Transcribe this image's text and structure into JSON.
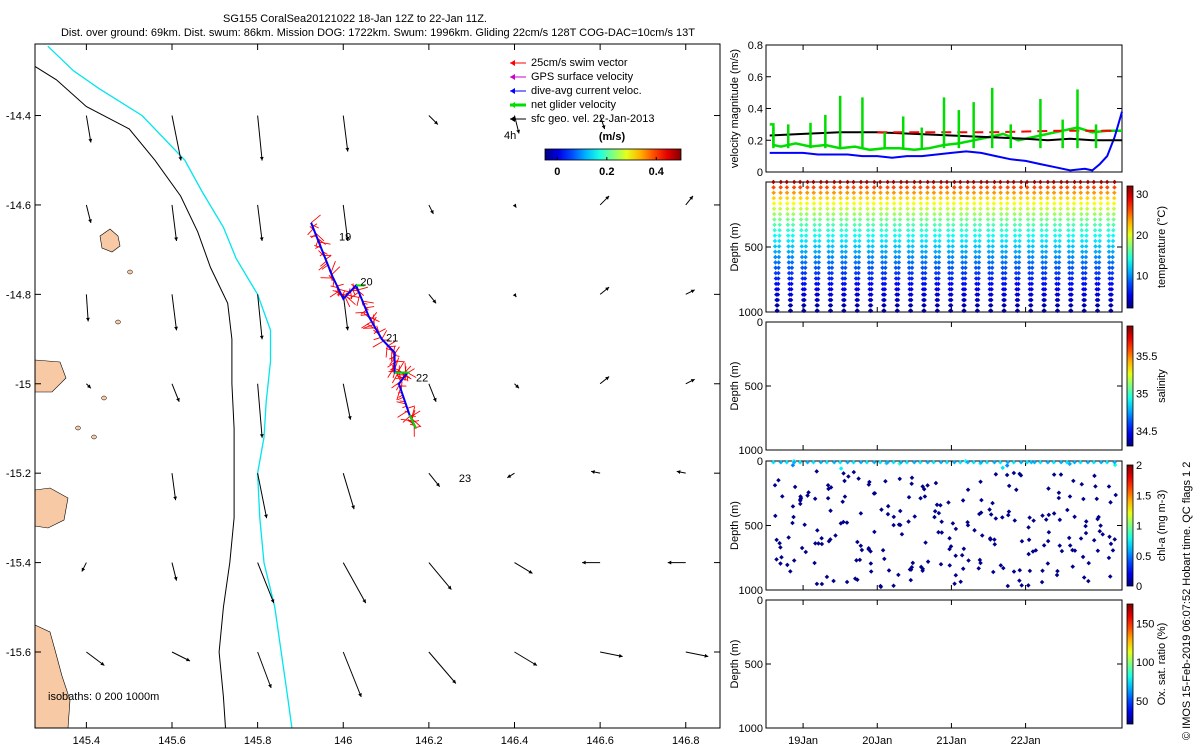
{
  "header": {
    "title": "SG155 CoralSea20121022 18-Jan 12Z to 22-Jan 11Z.",
    "subtitle": "Dist. over ground: 69km. Dist. swum: 86km. Mission DOG: 1722km. Swum: 1996km. Gliding 22cm/s 128T COG-DAC=10cm/s 13T"
  },
  "side_label": "© IMOS 15-Feb-2019 06:07:52 Hobart time. QC flags 1  2",
  "colors": {
    "land": "#f7c9a4",
    "coast_line": "#000000",
    "isobath_200": "#000000",
    "isobath_1000": "#00e5ee",
    "swim_vector": "#ff0000",
    "gps_velocity": "#cc00cc",
    "dive_current": "#0000ff",
    "net_velocity": "#00dd00",
    "geo_velocity": "#000000",
    "mean_line": "#000000"
  },
  "chart_data": [
    {
      "id": "map",
      "type": "scatter",
      "xlim": [
        145.28,
        146.88
      ],
      "ylim": [
        -15.77,
        -14.24
      ],
      "x_ticks": [
        145.4,
        145.6,
        145.8,
        146,
        146.2,
        146.4,
        146.6,
        146.8
      ],
      "x_tick_labels": [
        "145.4",
        "145.6",
        "145.8",
        "146",
        "146.2",
        "146.4",
        "146.6",
        "146.8"
      ],
      "y_ticks": [
        -14.4,
        -14.6,
        -14.8,
        -15,
        -15.2,
        -15.4,
        -15.6
      ],
      "y_tick_labels": [
        "-14.4",
        "-14.6",
        "-14.8",
        "-15",
        "-15.2",
        "-15.4",
        "-15.6"
      ],
      "legend": {
        "placement": "top-right",
        "entries": [
          "25cm/s swim vector",
          "GPS surface velocity",
          "dive-avg current veloc.",
          "net glider velocity",
          "sfc geo. vel. 22-Jan-2013"
        ],
        "time_note": "4h"
      },
      "colorbar": {
        "label": "(m/s)",
        "ticks": [
          0,
          0.2,
          0.4
        ],
        "tick_labels": [
          "0",
          "0.2",
          "0.4"
        ],
        "range": [
          -0.05,
          0.5
        ]
      },
      "isobath_label": "isobaths: 0   200  1000m",
      "day_labels": [
        {
          "text": "19",
          "x": 145.99,
          "y": -14.68
        },
        {
          "text": "20",
          "x": 146.04,
          "y": -14.78
        },
        {
          "text": "21",
          "x": 146.1,
          "y": -14.905
        },
        {
          "text": "22",
          "x": 146.17,
          "y": -14.995
        },
        {
          "text": "23",
          "x": 146.27,
          "y": -15.22
        }
      ],
      "track": [
        [
          145.925,
          -14.64
        ],
        [
          145.95,
          -14.7
        ],
        [
          145.975,
          -14.76
        ],
        [
          146.0,
          -14.81
        ],
        [
          146.03,
          -14.78
        ],
        [
          146.06,
          -14.85
        ],
        [
          146.09,
          -14.9
        ],
        [
          146.12,
          -14.93
        ],
        [
          146.12,
          -14.975
        ],
        [
          146.15,
          -14.975
        ],
        [
          146.13,
          -15.0
        ],
        [
          146.155,
          -15.07
        ],
        [
          146.17,
          -15.1
        ]
      ],
      "coast": [
        [
          145.28,
          -14.29
        ],
        [
          145.33,
          -14.32
        ],
        [
          145.4,
          -14.38
        ],
        [
          145.5,
          -14.43
        ],
        [
          145.56,
          -14.5
        ],
        [
          145.62,
          -14.58
        ],
        [
          145.66,
          -14.66
        ],
        [
          145.69,
          -14.74
        ],
        [
          145.73,
          -14.82
        ],
        [
          145.74,
          -14.9
        ],
        [
          145.74,
          -15.0
        ],
        [
          145.745,
          -15.1
        ],
        [
          145.745,
          -15.2
        ],
        [
          145.745,
          -15.3
        ],
        [
          145.735,
          -15.4
        ],
        [
          145.72,
          -15.5
        ],
        [
          145.71,
          -15.6
        ],
        [
          145.72,
          -15.7
        ],
        [
          145.725,
          -15.77
        ]
      ],
      "isobath_1000m": [
        [
          145.31,
          -14.245
        ],
        [
          145.37,
          -14.3
        ],
        [
          145.43,
          -14.34
        ],
        [
          145.53,
          -14.4
        ],
        [
          145.63,
          -14.5
        ],
        [
          145.67,
          -14.57
        ],
        [
          145.72,
          -14.65
        ],
        [
          145.75,
          -14.72
        ],
        [
          145.8,
          -14.8
        ],
        [
          145.83,
          -14.88
        ],
        [
          145.83,
          -14.95
        ],
        [
          145.82,
          -15.04
        ],
        [
          145.815,
          -15.12
        ],
        [
          145.8,
          -15.2
        ],
        [
          145.805,
          -15.3
        ],
        [
          145.815,
          -15.4
        ],
        [
          145.84,
          -15.5
        ],
        [
          145.855,
          -15.6
        ],
        [
          145.87,
          -15.7
        ],
        [
          145.88,
          -15.77
        ]
      ],
      "surface_vectors": [
        {
          "x": 145.4,
          "y": -14.4,
          "u": 0.005,
          "v": -0.03
        },
        {
          "x": 145.6,
          "y": -14.4,
          "u": 0.01,
          "v": -0.05
        },
        {
          "x": 145.8,
          "y": -14.4,
          "u": 0.005,
          "v": -0.05
        },
        {
          "x": 146.0,
          "y": -14.4,
          "u": 0.005,
          "v": -0.04
        },
        {
          "x": 146.2,
          "y": -14.4,
          "u": 0.01,
          "v": -0.01
        },
        {
          "x": 146.4,
          "y": -14.4,
          "u": 0.005,
          "v": -0.02
        },
        {
          "x": 146.6,
          "y": -14.4,
          "u": 0.005,
          "v": -0.015
        },
        {
          "x": 145.4,
          "y": -14.6,
          "u": 0.005,
          "v": -0.02
        },
        {
          "x": 145.6,
          "y": -14.6,
          "u": 0.005,
          "v": -0.04
        },
        {
          "x": 145.8,
          "y": -14.6,
          "u": 0.005,
          "v": -0.04
        },
        {
          "x": 146.0,
          "y": -14.6,
          "u": 0.005,
          "v": -0.04
        },
        {
          "x": 146.2,
          "y": -14.6,
          "u": 0.005,
          "v": -0.01
        },
        {
          "x": 146.4,
          "y": -14.6,
          "u": 0.002,
          "v": -0.003
        },
        {
          "x": 146.6,
          "y": -14.6,
          "u": 0.01,
          "v": 0.01
        },
        {
          "x": 146.8,
          "y": -14.6,
          "u": 0.008,
          "v": 0.01
        },
        {
          "x": 145.4,
          "y": -14.8,
          "u": 0.002,
          "v": -0.03
        },
        {
          "x": 145.6,
          "y": -14.8,
          "u": 0.005,
          "v": -0.04
        },
        {
          "x": 145.8,
          "y": -14.8,
          "u": 0.005,
          "v": -0.05
        },
        {
          "x": 146.0,
          "y": -14.8,
          "u": 0.005,
          "v": -0.04
        },
        {
          "x": 146.2,
          "y": -14.8,
          "u": 0.008,
          "v": -0.01
        },
        {
          "x": 146.4,
          "y": -14.8,
          "u": 0.002,
          "v": -0.003
        },
        {
          "x": 146.6,
          "y": -14.8,
          "u": 0.01,
          "v": 0.008
        },
        {
          "x": 146.8,
          "y": -14.8,
          "u": 0.01,
          "v": 0.005
        },
        {
          "x": 145.4,
          "y": -15.0,
          "u": 0.005,
          "v": -0.005
        },
        {
          "x": 145.6,
          "y": -15.0,
          "u": 0.008,
          "v": -0.02
        },
        {
          "x": 145.8,
          "y": -15.0,
          "u": 0.005,
          "v": -0.06
        },
        {
          "x": 146.0,
          "y": -15.0,
          "u": 0.008,
          "v": -0.04
        },
        {
          "x": 146.2,
          "y": -15.0,
          "u": 0.008,
          "v": -0.02
        },
        {
          "x": 146.4,
          "y": -15.0,
          "u": 0.005,
          "v": -0.005
        },
        {
          "x": 146.6,
          "y": -15.0,
          "u": 0.01,
          "v": 0.008
        },
        {
          "x": 146.8,
          "y": -15.0,
          "u": 0.01,
          "v": 0.005
        },
        {
          "x": 145.6,
          "y": -15.2,
          "u": 0.004,
          "v": -0.03
        },
        {
          "x": 145.8,
          "y": -15.2,
          "u": 0.01,
          "v": -0.05
        },
        {
          "x": 146.0,
          "y": -15.2,
          "u": 0.012,
          "v": -0.04
        },
        {
          "x": 146.2,
          "y": -15.2,
          "u": 0.012,
          "v": -0.015
        },
        {
          "x": 146.4,
          "y": -15.2,
          "u": -0.008,
          "v": -0.005
        },
        {
          "x": 146.6,
          "y": -15.2,
          "u": -0.01,
          "v": 0.002
        },
        {
          "x": 146.8,
          "y": -15.2,
          "u": -0.01,
          "v": 0.002
        },
        {
          "x": 145.4,
          "y": -15.4,
          "u": -0.005,
          "v": -0.01
        },
        {
          "x": 145.6,
          "y": -15.4,
          "u": 0.005,
          "v": -0.02
        },
        {
          "x": 145.8,
          "y": -15.4,
          "u": 0.018,
          "v": -0.045
        },
        {
          "x": 146.0,
          "y": -15.4,
          "u": 0.025,
          "v": -0.045
        },
        {
          "x": 146.2,
          "y": -15.4,
          "u": 0.025,
          "v": -0.03
        },
        {
          "x": 146.4,
          "y": -15.4,
          "u": 0.02,
          "v": -0.012
        },
        {
          "x": 146.6,
          "y": -15.4,
          "u": -0.02,
          "v": 0.0
        },
        {
          "x": 146.8,
          "y": -15.4,
          "u": -0.02,
          "v": 0.0
        },
        {
          "x": 145.4,
          "y": -15.6,
          "u": 0.02,
          "v": -0.015
        },
        {
          "x": 145.6,
          "y": -15.6,
          "u": 0.02,
          "v": -0.01
        },
        {
          "x": 145.8,
          "y": -15.6,
          "u": 0.015,
          "v": -0.04
        },
        {
          "x": 146.0,
          "y": -15.6,
          "u": 0.02,
          "v": -0.05
        },
        {
          "x": 146.2,
          "y": -15.6,
          "u": 0.03,
          "v": -0.035
        },
        {
          "x": 146.4,
          "y": -15.6,
          "u": 0.025,
          "v": -0.015
        },
        {
          "x": 146.6,
          "y": -15.6,
          "u": 0.025,
          "v": -0.005
        },
        {
          "x": 146.8,
          "y": -15.6,
          "u": 0.025,
          "v": -0.005
        }
      ]
    },
    {
      "id": "velocity",
      "type": "line",
      "ylabel": "velocity magnitude (m/s)",
      "xlim": [
        18.5,
        23.3
      ],
      "ylim": [
        0,
        0.8
      ],
      "y_ticks": [
        0,
        0.2,
        0.4,
        0.6,
        0.8
      ],
      "y_tick_labels": [
        "0",
        "0.2",
        "0.4",
        "0.6",
        "0.8"
      ],
      "series": [
        {
          "color": "#00dd00",
          "x": [
            18.55,
            18.6,
            18.6,
            18.7,
            18.9,
            19.1,
            19.3,
            19.5,
            19.7,
            19.9,
            20.1,
            20.3,
            20.5,
            20.7,
            20.9,
            21.1,
            21.3,
            21.5,
            21.7,
            21.9,
            22.1,
            22.3,
            22.5,
            22.6,
            22.7,
            22.9,
            23.1,
            23.3
          ],
          "y": [
            0.3,
            0.3,
            0.17,
            0.16,
            0.18,
            0.16,
            0.17,
            0.15,
            0.16,
            0.14,
            0.15,
            0.15,
            0.14,
            0.15,
            0.17,
            0.18,
            0.2,
            0.22,
            0.24,
            0.2,
            0.22,
            0.24,
            0.26,
            0.27,
            0.28,
            0.25,
            0.26,
            0.26
          ]
        },
        {
          "color": "#0000ff",
          "x": [
            18.55,
            18.8,
            19.0,
            19.2,
            19.4,
            19.6,
            19.8,
            20.0,
            20.2,
            20.4,
            20.6,
            20.8,
            21.0,
            21.2,
            21.4,
            21.6,
            21.8,
            22.0,
            22.2,
            22.4,
            22.6,
            22.8,
            22.9,
            23.0,
            23.1,
            23.2,
            23.3
          ],
          "y": [
            0.12,
            0.12,
            0.12,
            0.11,
            0.11,
            0.11,
            0.1,
            0.1,
            0.09,
            0.1,
            0.1,
            0.11,
            0.12,
            0.13,
            0.12,
            0.1,
            0.08,
            0.07,
            0.05,
            0.03,
            0.01,
            0.02,
            0.01,
            0.05,
            0.1,
            0.22,
            0.38
          ]
        },
        {
          "color": "#000000",
          "x": [
            18.55,
            19.0,
            19.5,
            20.0,
            20.5,
            21.0,
            21.5,
            22.0,
            22.3,
            22.6,
            22.9,
            23.1,
            23.3
          ],
          "y": [
            0.23,
            0.24,
            0.25,
            0.25,
            0.24,
            0.23,
            0.22,
            0.21,
            0.2,
            0.21,
            0.2,
            0.2,
            0.2
          ]
        },
        {
          "color": "#ff0000",
          "dashed": true,
          "x": [
            20.0,
            21.5,
            22.5,
            23.2
          ],
          "y": [
            0.25,
            0.25,
            0.26,
            0.26
          ]
        }
      ],
      "spikes": [
        {
          "x": 18.6,
          "top": 0.28
        },
        {
          "x": 18.8,
          "top": 0.3
        },
        {
          "x": 19.1,
          "top": 0.31
        },
        {
          "x": 19.3,
          "top": 0.36
        },
        {
          "x": 19.5,
          "top": 0.48
        },
        {
          "x": 19.8,
          "top": 0.47
        },
        {
          "x": 20.1,
          "top": 0.25
        },
        {
          "x": 20.35,
          "top": 0.35
        },
        {
          "x": 20.6,
          "top": 0.28
        },
        {
          "x": 20.9,
          "top": 0.47
        },
        {
          "x": 21.1,
          "top": 0.39
        },
        {
          "x": 21.3,
          "top": 0.44
        },
        {
          "x": 21.55,
          "top": 0.53
        },
        {
          "x": 21.8,
          "top": 0.3
        },
        {
          "x": 22.2,
          "top": 0.46
        },
        {
          "x": 22.5,
          "top": 0.33
        },
        {
          "x": 22.7,
          "top": 0.52
        },
        {
          "x": 22.95,
          "top": 0.3
        }
      ]
    },
    {
      "id": "temperature",
      "type": "scatter",
      "ylabel": "Depth (m)",
      "colorbar_label": "temperature (°C)",
      "colorbar_ticks": [
        10,
        20,
        30
      ],
      "colorbar_tick_labels": [
        "10",
        "20",
        "30"
      ],
      "colorbar_range": [
        2,
        32
      ],
      "ylim": [
        0,
        1000
      ],
      "y_ticks": [
        500,
        1000
      ],
      "y_tick_labels": [
        "500",
        "1000"
      ],
      "dives": [
        18.6,
        18.78,
        18.96,
        19.14,
        19.32,
        19.5,
        19.68,
        19.86,
        20.04,
        20.22,
        20.4,
        20.58,
        20.76,
        20.94,
        21.12,
        21.3,
        21.48,
        21.66,
        21.84,
        22.02,
        22.2,
        22.38,
        22.56,
        22.74,
        22.92,
        23.1
      ]
    },
    {
      "id": "salinity",
      "type": "scatter",
      "ylabel": "Depth (m)",
      "colorbar_label": "salinity",
      "colorbar_ticks": [
        34.5,
        35,
        35.5
      ],
      "colorbar_tick_labels": [
        "34.5",
        "35",
        "35.5"
      ],
      "colorbar_range": [
        34.3,
        35.9
      ],
      "ylim": [
        0,
        1000
      ],
      "y_ticks": [
        0,
        500,
        1000
      ],
      "y_tick_labels": [
        "0",
        "500",
        "1000"
      ]
    },
    {
      "id": "chla",
      "type": "scatter",
      "ylabel": "Depth (m)",
      "colorbar_label": "chl-a (mg m-3)",
      "colorbar_ticks": [
        0,
        0.5,
        1,
        1.5,
        2
      ],
      "colorbar_tick_labels": [
        "0",
        "0.5",
        "1",
        "1.5",
        "2"
      ],
      "colorbar_range": [
        0,
        2
      ],
      "ylim": [
        0,
        1000
      ],
      "y_ticks": [
        0,
        500,
        1000
      ],
      "y_tick_labels": [
        "0",
        "500",
        "1000"
      ]
    },
    {
      "id": "oxygen",
      "type": "scatter",
      "ylabel": "Depth (m)",
      "colorbar_label": "Ox. sat. ratio (%)",
      "colorbar_ticks": [
        50,
        100,
        150
      ],
      "colorbar_tick_labels": [
        "50",
        "100",
        "150"
      ],
      "colorbar_range": [
        20,
        175
      ],
      "ylim": [
        0,
        1000
      ],
      "y_ticks": [
        0,
        500,
        1000
      ],
      "y_tick_labels": [
        "0",
        "500",
        "1000"
      ],
      "x_ticks": [
        19,
        20,
        21,
        22
      ],
      "x_tick_labels": [
        "19Jan",
        "20Jan",
        "21Jan",
        "22Jan"
      ],
      "xlim": [
        18.5,
        23.3
      ]
    }
  ]
}
